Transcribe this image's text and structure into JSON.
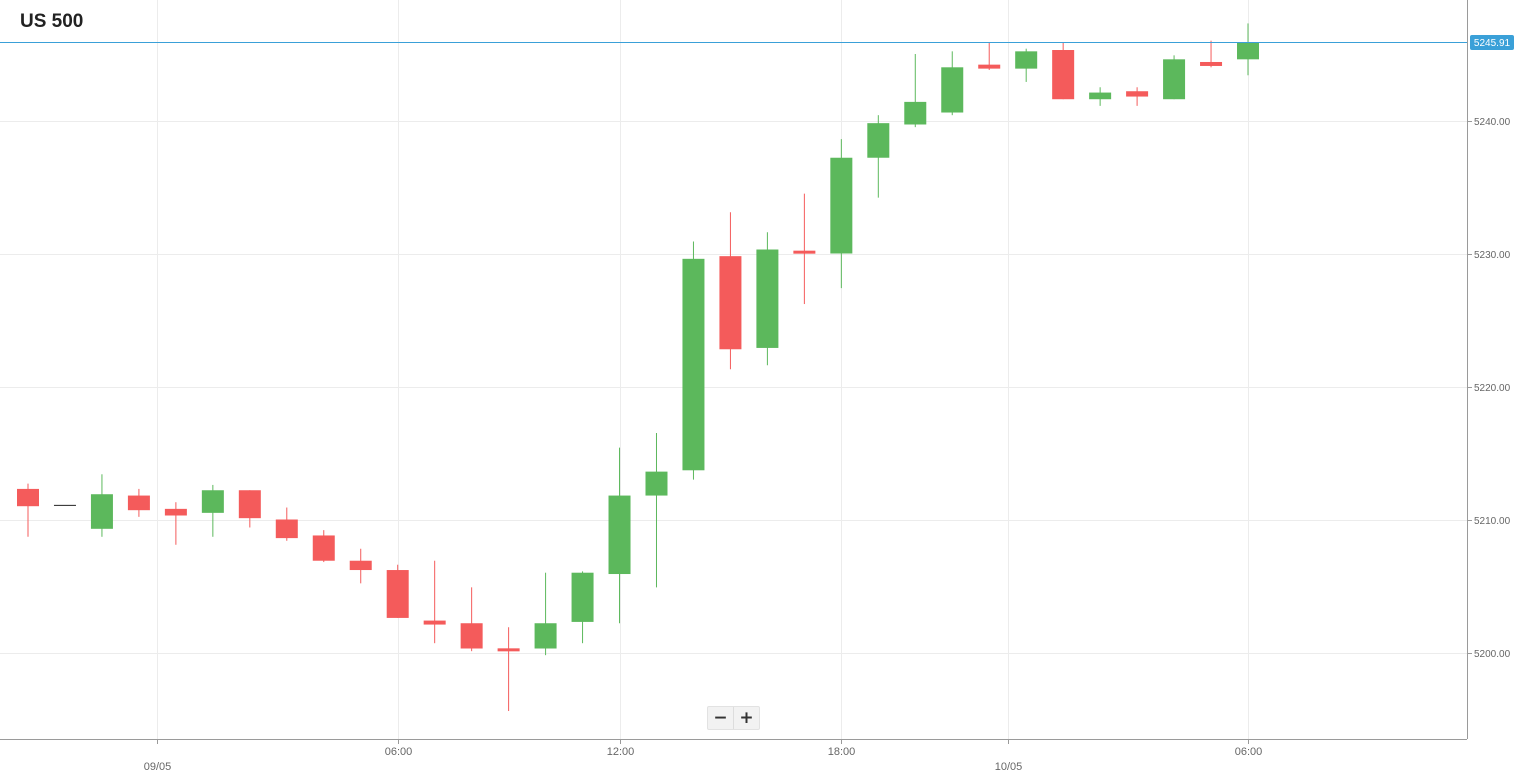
{
  "title": "US 500",
  "zoom": {
    "out_label": "−",
    "in_label": "+"
  },
  "colors": {
    "up": "#5cb85c",
    "down": "#f45b5b",
    "neutral": "#222222",
    "last_price": "#3aa0d8",
    "grid": "#ececec",
    "axis": "#9a9a9a",
    "label": "#666666"
  },
  "chart_data": {
    "type": "candlestick",
    "title": "US 500",
    "interval": "hourly",
    "ylim": [
      5194.0,
      5251.0
    ],
    "y_ticks": [
      "5200.00",
      "5210.00",
      "5220.00",
      "5230.00",
      "5240.00"
    ],
    "last_price": "5245.91",
    "x_ticks": [
      {
        "index": 3.5,
        "label": "",
        "day_label": "09/05"
      },
      {
        "index": 10,
        "label": "06:00",
        "day_label": ""
      },
      {
        "index": 16,
        "label": "12:00",
        "day_label": ""
      },
      {
        "index": 22,
        "label": "18:00",
        "day_label": ""
      },
      {
        "index": 26.5,
        "label": "",
        "day_label": "10/05"
      },
      {
        "index": 33,
        "label": "06:00",
        "day_label": ""
      }
    ],
    "candles": [
      {
        "o": 5212.3,
        "h": 5212.7,
        "l": 5208.7,
        "c": 5211.0
      },
      {
        "o": 5211.1,
        "h": 5211.1,
        "l": 5211.1,
        "c": 5211.1
      },
      {
        "o": 5209.3,
        "h": 5213.4,
        "l": 5208.7,
        "c": 5211.9
      },
      {
        "o": 5211.8,
        "h": 5212.3,
        "l": 5210.2,
        "c": 5210.7
      },
      {
        "o": 5210.8,
        "h": 5211.3,
        "l": 5208.1,
        "c": 5210.3
      },
      {
        "o": 5210.5,
        "h": 5212.6,
        "l": 5208.7,
        "c": 5212.2
      },
      {
        "o": 5212.2,
        "h": 5212.2,
        "l": 5209.4,
        "c": 5210.1
      },
      {
        "o": 5210.0,
        "h": 5210.9,
        "l": 5208.4,
        "c": 5208.6
      },
      {
        "o": 5208.8,
        "h": 5209.2,
        "l": 5206.8,
        "c": 5206.9
      },
      {
        "o": 5206.9,
        "h": 5207.8,
        "l": 5205.2,
        "c": 5206.2
      },
      {
        "o": 5206.2,
        "h": 5206.6,
        "l": 5202.6,
        "c": 5202.6
      },
      {
        "o": 5202.4,
        "h": 5206.9,
        "l": 5200.7,
        "c": 5202.1
      },
      {
        "o": 5202.2,
        "h": 5204.9,
        "l": 5200.1,
        "c": 5200.3
      },
      {
        "o": 5200.3,
        "h": 5201.9,
        "l": 5195.6,
        "c": 5200.1
      },
      {
        "o": 5200.3,
        "h": 5206.0,
        "l": 5199.8,
        "c": 5202.2
      },
      {
        "o": 5202.3,
        "h": 5206.1,
        "l": 5200.7,
        "c": 5206.0
      },
      {
        "o": 5205.9,
        "h": 5215.4,
        "l": 5202.2,
        "c": 5211.8
      },
      {
        "o": 5211.8,
        "h": 5216.5,
        "l": 5204.9,
        "c": 5213.6
      },
      {
        "o": 5213.7,
        "h": 5230.9,
        "l": 5213.0,
        "c": 5229.6
      },
      {
        "o": 5229.8,
        "h": 5233.1,
        "l": 5221.3,
        "c": 5222.8
      },
      {
        "o": 5222.9,
        "h": 5231.6,
        "l": 5221.6,
        "c": 5230.3
      },
      {
        "o": 5230.1,
        "h": 5234.5,
        "l": 5226.2,
        "c": 5230.1
      },
      {
        "o": 5230.0,
        "h": 5238.6,
        "l": 5227.4,
        "c": 5237.2
      },
      {
        "o": 5237.2,
        "h": 5240.4,
        "l": 5234.2,
        "c": 5239.8
      },
      {
        "o": 5239.7,
        "h": 5245.0,
        "l": 5239.5,
        "c": 5241.4
      },
      {
        "o": 5240.6,
        "h": 5245.2,
        "l": 5240.4,
        "c": 5244.0
      },
      {
        "o": 5244.2,
        "h": 5245.9,
        "l": 5243.8,
        "c": 5243.9
      },
      {
        "o": 5243.9,
        "h": 5245.4,
        "l": 5242.9,
        "c": 5245.2
      },
      {
        "o": 5245.3,
        "h": 5245.9,
        "l": 5241.6,
        "c": 5241.6
      },
      {
        "o": 5241.6,
        "h": 5242.5,
        "l": 5241.1,
        "c": 5242.1
      },
      {
        "o": 5242.2,
        "h": 5242.5,
        "l": 5241.1,
        "c": 5241.8
      },
      {
        "o": 5241.6,
        "h": 5244.9,
        "l": 5241.6,
        "c": 5244.6
      },
      {
        "o": 5244.4,
        "h": 5246.0,
        "l": 5244.0,
        "c": 5244.1
      },
      {
        "o": 5244.6,
        "h": 5247.3,
        "l": 5243.4,
        "c": 5245.9
      }
    ]
  }
}
